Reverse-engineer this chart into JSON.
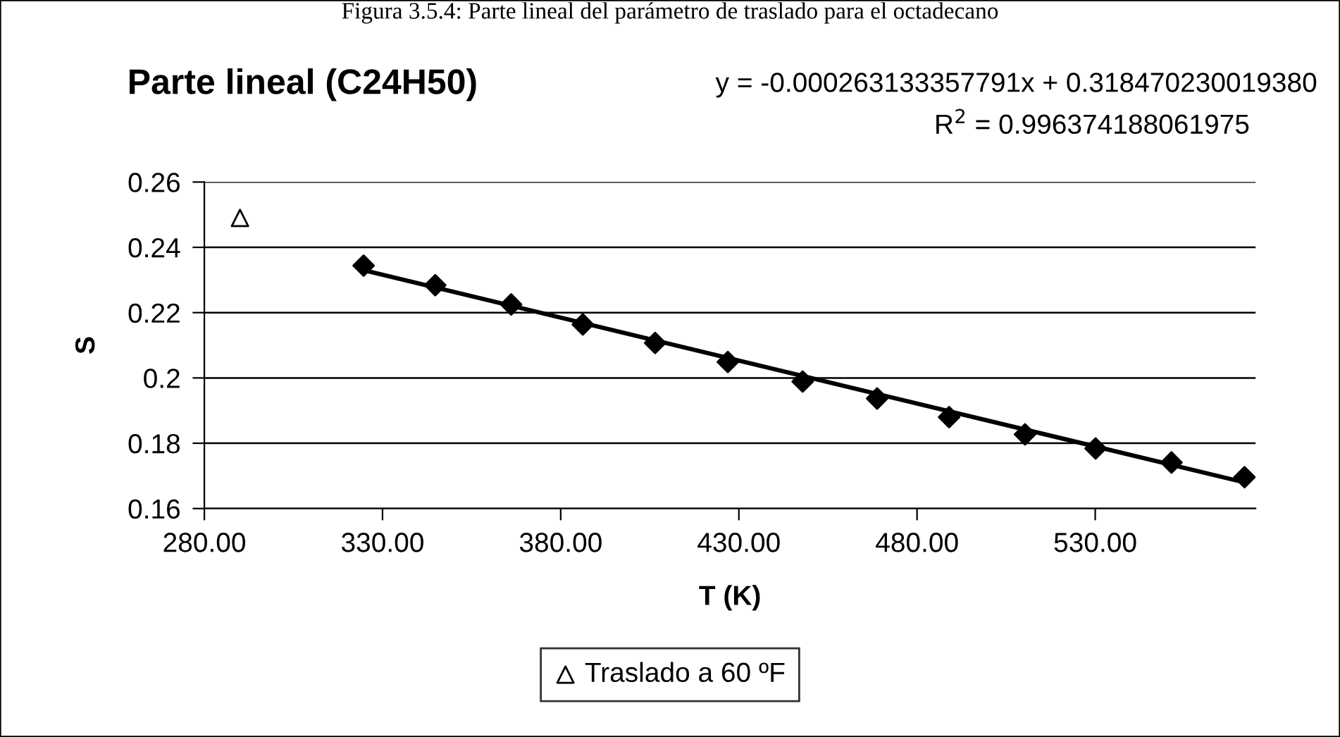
{
  "chart_data": {
    "type": "scatter",
    "title": "Parte lineal (C24H50)",
    "xlabel": "T (K)",
    "ylabel": "S",
    "annotations": [
      "Figura 3.5.4: Parte lineal del parámetro de traslado para el octadecano",
      "y = -0.000263133357791x + 0.318470230019380",
      "R$^{2}$ = 0.996374188061975"
    ],
    "series": [
      {
        "color": "#000000",
        "marker": "diamond",
        "x": [
          324.7,
          344.8,
          366.1,
          386.2,
          406.5,
          426.9,
          447.9,
          468.8,
          489.0,
          510.3,
          530.1,
          551.4,
          571.9
        ],
        "values": [
          0.2344,
          0.2284,
          0.2225,
          0.2164,
          0.2107,
          0.2049,
          0.1989,
          0.1937,
          0.188,
          0.1827,
          0.1784,
          0.1741,
          0.1696
        ]
      },
      {
        "type": "line",
        "color": "#000000",
        "marker": "none",
        "line_style": "solid",
        "x": [
          324.7,
          571.9
        ],
        "values": [
          0.233,
          0.168
        ]
      },
      {
        "type": "scatter",
        "name": "Traslado a 60 ºF",
        "color": "#000000",
        "marker": "triangle",
        "x": [
          290.0
        ],
        "values": [
          0.249
        ]
      }
    ],
    "xlim": [
      280,
      575
    ],
    "xticks": [
      {
        "value": 280,
        "label": "280.00"
      },
      {
        "value": 330,
        "label": "330.00"
      },
      {
        "value": 380,
        "label": "380.00"
      },
      {
        "value": 430,
        "label": "430.00"
      },
      {
        "value": 480,
        "label": "480.00"
      },
      {
        "value": 530,
        "label": "530.00"
      }
    ],
    "ylim": [
      0.16,
      0.26
    ],
    "yticks": [
      0.16,
      0.18,
      0.2,
      0.22,
      0.24,
      0.26
    ],
    "grid": "y",
    "legend": "bottom"
  }
}
